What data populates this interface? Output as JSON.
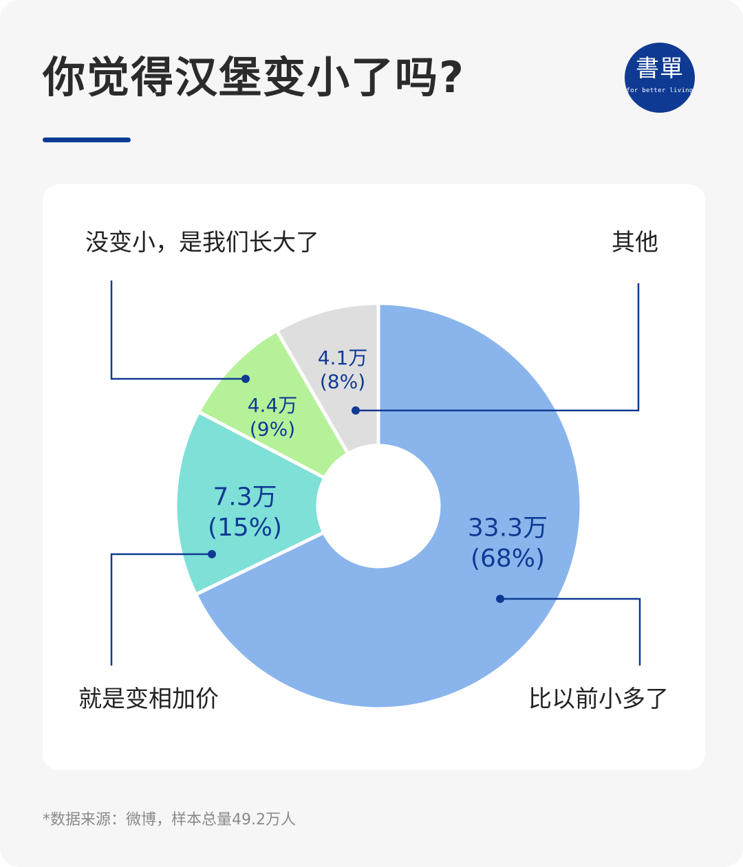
{
  "title": "你觉得汉堡变小了吗?",
  "logo": {
    "text": "書單",
    "tagline": "for better living"
  },
  "footnote": "*数据来源：微博，样本总量49.2万人",
  "colors": {
    "accent": "#0f3a93",
    "title": "#2b2b2b",
    "label": "#222222",
    "background": "#f6f6f6",
    "card": "#ffffff"
  },
  "chart_data": {
    "type": "pie",
    "title": "",
    "unit": "万",
    "total": 49.2,
    "slices": [
      {
        "label": "比以前小多了",
        "value": 33.3,
        "percent": 68,
        "value_text": "33.3万",
        "percent_text": "(68%)",
        "color": "#8ab5ec"
      },
      {
        "label": "就是变相加价",
        "value": 7.3,
        "percent": 15,
        "value_text": "7.3万",
        "percent_text": "(15%)",
        "color": "#7fe0d8"
      },
      {
        "label": "没变小，是我们长大了",
        "value": 4.4,
        "percent": 9,
        "value_text": "4.4万",
        "percent_text": "(9%)",
        "color": "#b5f199"
      },
      {
        "label": "其他",
        "value": 4.1,
        "percent": 8,
        "value_text": "4.1万",
        "percent_text": "(8%)",
        "color": "#dedede"
      }
    ]
  }
}
